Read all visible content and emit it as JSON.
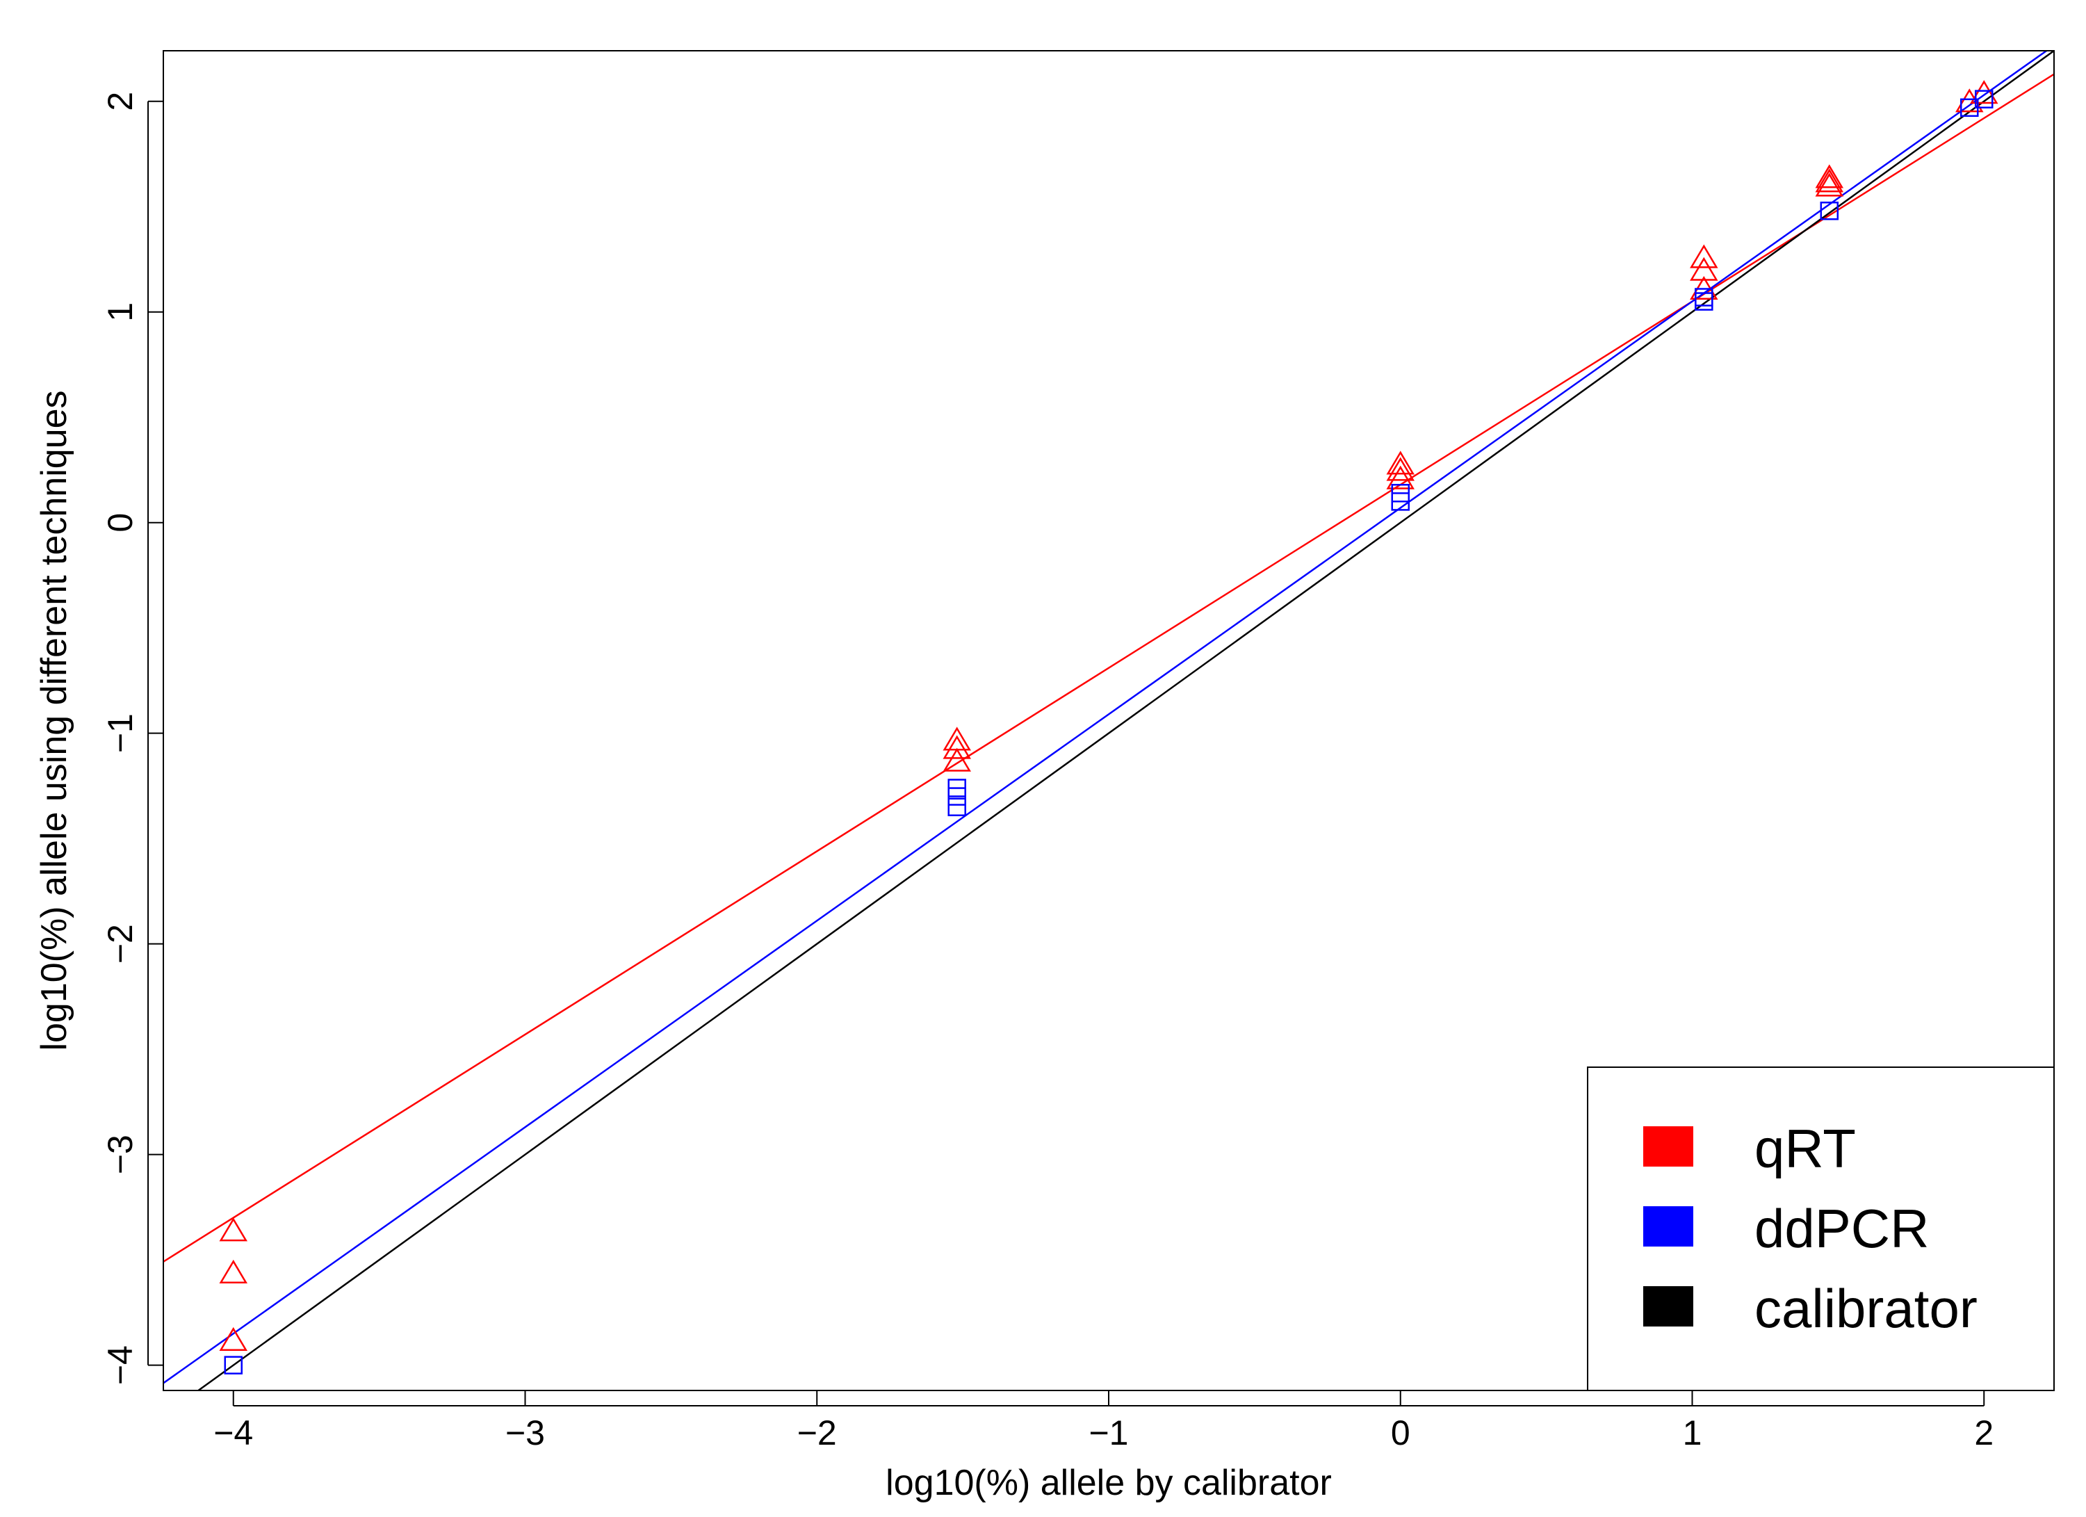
{
  "chart_data": {
    "type": "scatter",
    "xlabel": "log10(%) allele by calibrator",
    "ylabel": "log10(%) allele using different techniques",
    "xlim": [
      -4.24,
      2.24
    ],
    "ylim": [
      -4.12,
      2.24
    ],
    "x_ticks": [
      -4,
      -3,
      -2,
      -1,
      0,
      1,
      2
    ],
    "y_ticks": [
      -4,
      -3,
      -2,
      -1,
      0,
      1,
      2
    ],
    "tick_labels": {
      "x": [
        "−4",
        "−3",
        "−2",
        "−1",
        "0",
        "1",
        "2"
      ],
      "y": [
        "−4",
        "−3",
        "−2",
        "−1",
        "0",
        "1",
        "2"
      ]
    },
    "grid": false,
    "legend": {
      "position": "bottom-right"
    },
    "series": [
      {
        "name": "qRT",
        "color": "#ff0000",
        "marker": "triangle",
        "points": [
          {
            "x": -4.0,
            "y": -3.37
          },
          {
            "x": -4.0,
            "y": -3.57
          },
          {
            "x": -4.0,
            "y": -3.89
          },
          {
            "x": -1.52,
            "y": -1.04
          },
          {
            "x": -1.52,
            "y": -1.08
          },
          {
            "x": -1.52,
            "y": -1.14
          },
          {
            "x": 0.0,
            "y": 0.27
          },
          {
            "x": 0.0,
            "y": 0.24
          },
          {
            "x": 0.0,
            "y": 0.2
          },
          {
            "x": 1.04,
            "y": 1.25
          },
          {
            "x": 1.04,
            "y": 1.19
          },
          {
            "x": 1.04,
            "y": 1.1
          },
          {
            "x": 1.47,
            "y": 1.63
          },
          {
            "x": 1.47,
            "y": 1.61
          },
          {
            "x": 1.47,
            "y": 1.59
          },
          {
            "x": 1.95,
            "y": 1.99
          },
          {
            "x": 2.0,
            "y": 2.03
          }
        ],
        "fit_line": {
          "slope": 0.87,
          "intercept": 0.18
        }
      },
      {
        "name": "ddPCR",
        "color": "#0000ff",
        "marker": "square",
        "points": [
          {
            "x": -4.0,
            "y": -4.0
          },
          {
            "x": -1.52,
            "y": -1.26
          },
          {
            "x": -1.52,
            "y": -1.3
          },
          {
            "x": -1.52,
            "y": -1.35
          },
          {
            "x": 0.0,
            "y": 0.14
          },
          {
            "x": 0.0,
            "y": 0.1
          },
          {
            "x": 1.04,
            "y": 1.05
          },
          {
            "x": 1.04,
            "y": 1.07
          },
          {
            "x": 1.47,
            "y": 1.48
          },
          {
            "x": 1.95,
            "y": 1.97
          },
          {
            "x": 2.0,
            "y": 2.01
          }
        ],
        "fit_line": {
          "slope": 0.98,
          "intercept": 0.07
        }
      },
      {
        "name": "calibrator",
        "color": "#000000",
        "marker": "line",
        "points": [],
        "fit_line": {
          "slope": 1.0,
          "intercept": 0.0
        }
      }
    ]
  }
}
